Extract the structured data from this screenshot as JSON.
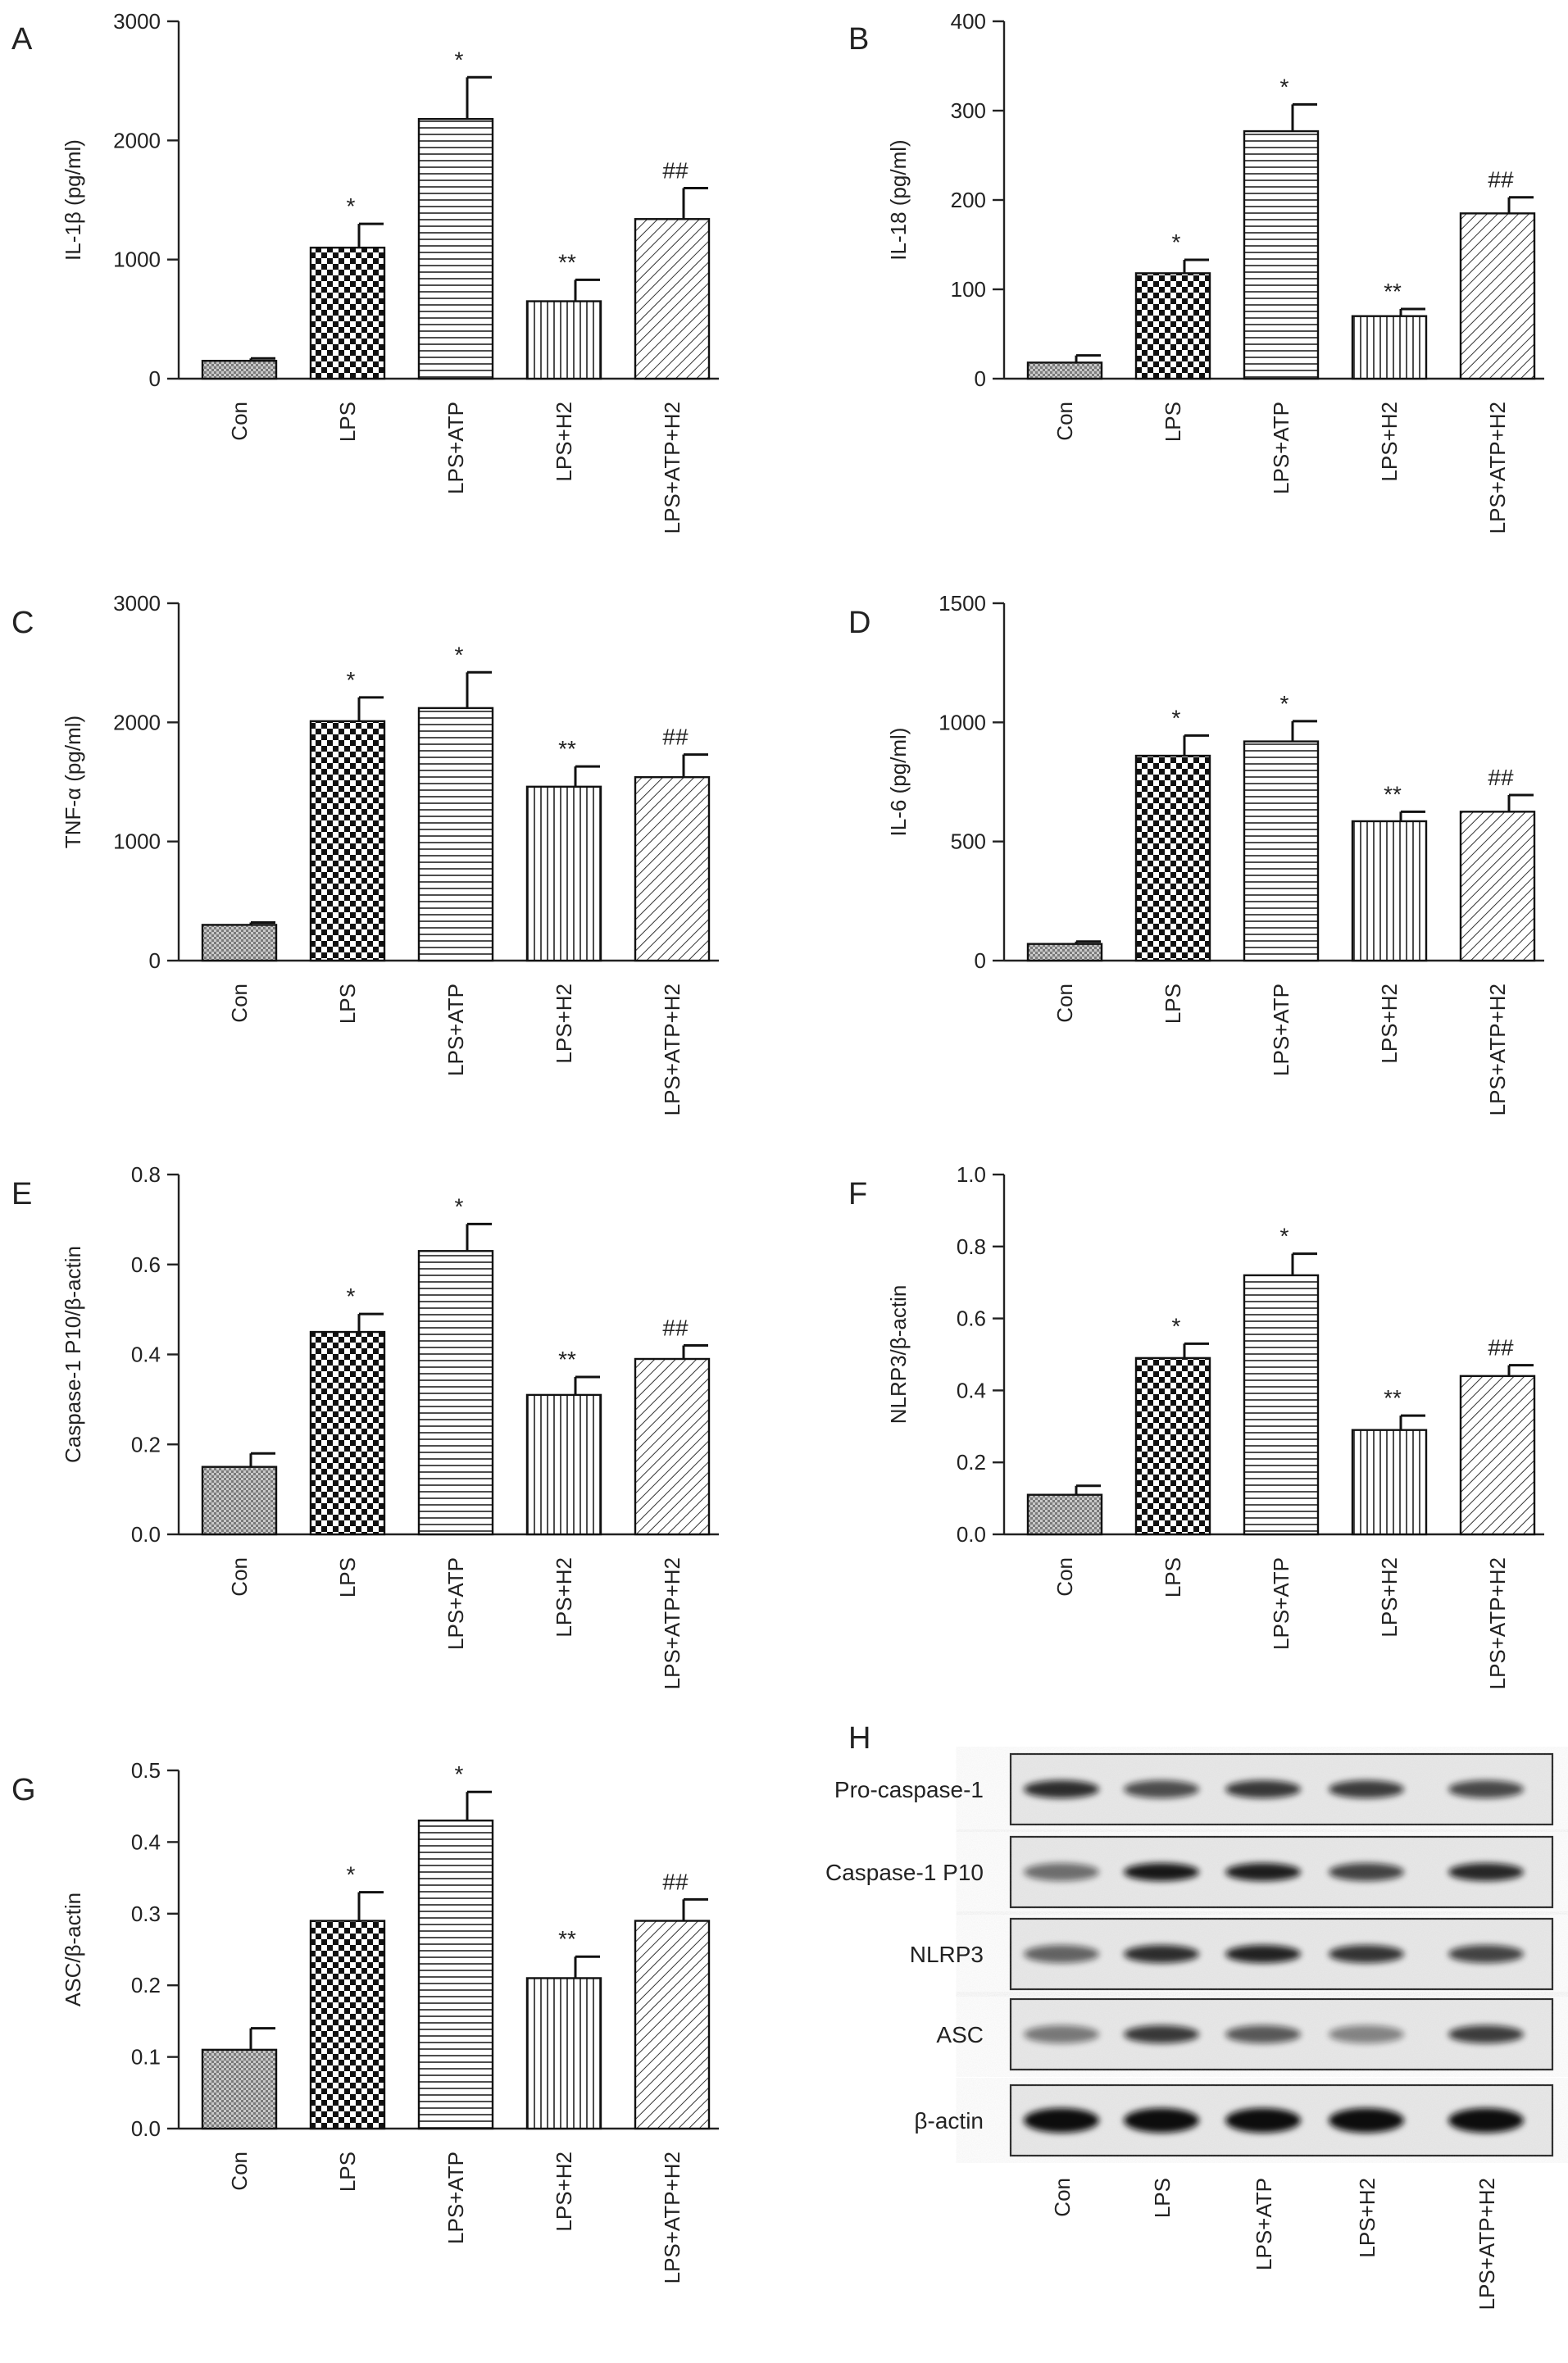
{
  "categories": [
    "Con",
    "LPS",
    "LPS+ATP",
    "LPS+H2",
    "LPS+ATP+H2"
  ],
  "chart_data": [
    {
      "panel": "A",
      "type": "bar",
      "ylabel": "IL-1β (pg/ml)",
      "ylim": [
        0,
        3000
      ],
      "yticks": [
        0,
        1000,
        2000,
        3000
      ],
      "tick_labels": [
        "0",
        "1000",
        "2000",
        "3000"
      ],
      "values": [
        150,
        1100,
        2180,
        650,
        1340
      ],
      "errors": [
        20,
        200,
        350,
        180,
        260
      ],
      "marks": [
        "",
        "*",
        "*",
        "**",
        "##"
      ]
    },
    {
      "panel": "B",
      "type": "bar",
      "ylabel": "IL-18 (pg/ml)",
      "ylim": [
        0,
        400
      ],
      "yticks": [
        0,
        100,
        200,
        300,
        400
      ],
      "tick_labels": [
        "0",
        "100",
        "200",
        "300",
        "400"
      ],
      "values": [
        18,
        118,
        277,
        70,
        185
      ],
      "errors": [
        8,
        15,
        30,
        8,
        18
      ],
      "marks": [
        "",
        "*",
        "*",
        "**",
        "##"
      ]
    },
    {
      "panel": "C",
      "type": "bar",
      "ylabel": "TNF-α (pg/ml)",
      "ylim": [
        0,
        3000
      ],
      "yticks": [
        0,
        1000,
        2000,
        3000
      ],
      "tick_labels": [
        "0",
        "1000",
        "2000",
        "3000"
      ],
      "values": [
        300,
        2010,
        2120,
        1460,
        1540
      ],
      "errors": [
        20,
        200,
        300,
        170,
        190
      ],
      "marks": [
        "",
        "*",
        "*",
        "**",
        "##"
      ]
    },
    {
      "panel": "D",
      "type": "bar",
      "ylabel": "IL-6 (pg/ml)",
      "ylim": [
        0,
        1500
      ],
      "yticks": [
        0,
        500,
        1000,
        1500
      ],
      "tick_labels": [
        "0",
        "500",
        "1000",
        "1500"
      ],
      "values": [
        70,
        860,
        920,
        585,
        625
      ],
      "errors": [
        10,
        85,
        85,
        40,
        70
      ],
      "marks": [
        "",
        "*",
        "*",
        "**",
        "##"
      ]
    },
    {
      "panel": "E",
      "type": "bar",
      "ylabel": "Caspase-1 P10/β-actin",
      "ylim": [
        0,
        0.8
      ],
      "yticks": [
        0,
        0.2,
        0.4,
        0.6,
        0.8
      ],
      "tick_labels": [
        "0.0",
        "0.2",
        "0.4",
        "0.6",
        "0.8"
      ],
      "values": [
        0.15,
        0.45,
        0.63,
        0.31,
        0.39
      ],
      "errors": [
        0.03,
        0.04,
        0.06,
        0.04,
        0.03
      ],
      "marks": [
        "",
        "*",
        "*",
        "**",
        "##"
      ]
    },
    {
      "panel": "F",
      "type": "bar",
      "ylabel": "NLRP3/β-actin",
      "ylim": [
        0,
        1.0
      ],
      "yticks": [
        0,
        0.2,
        0.4,
        0.6,
        0.8,
        1.0
      ],
      "tick_labels": [
        "0.0",
        "0.2",
        "0.4",
        "0.6",
        "0.8",
        "1.0"
      ],
      "values": [
        0.11,
        0.49,
        0.72,
        0.29,
        0.44
      ],
      "errors": [
        0.025,
        0.04,
        0.06,
        0.04,
        0.03
      ],
      "marks": [
        "",
        "*",
        "*",
        "**",
        "##"
      ]
    },
    {
      "panel": "G",
      "type": "bar",
      "ylabel": "ASC/β-actin",
      "ylim": [
        0,
        0.5
      ],
      "yticks": [
        0,
        0.1,
        0.2,
        0.3,
        0.4,
        0.5
      ],
      "tick_labels": [
        "0.0",
        "0.1",
        "0.2",
        "0.3",
        "0.4",
        "0.5"
      ],
      "values": [
        0.11,
        0.29,
        0.43,
        0.21,
        0.29
      ],
      "errors": [
        0.03,
        0.04,
        0.04,
        0.03,
        0.03
      ],
      "marks": [
        "",
        "*",
        "*",
        "**",
        "##"
      ]
    }
  ],
  "blot": {
    "panel": "H",
    "rows": [
      {
        "label": "Pro-caspase-1",
        "intensity": [
          0.85,
          0.7,
          0.8,
          0.78,
          0.72
        ]
      },
      {
        "label": "Caspase-1 P10",
        "intensity": [
          0.55,
          0.95,
          0.92,
          0.75,
          0.88
        ]
      },
      {
        "label": "NLRP3",
        "intensity": [
          0.6,
          0.85,
          0.9,
          0.82,
          0.75
        ]
      },
      {
        "label": "ASC",
        "intensity": [
          0.5,
          0.8,
          0.65,
          0.45,
          0.78
        ]
      },
      {
        "label": "β-actin",
        "intensity": [
          1.0,
          1.0,
          1.0,
          1.0,
          1.0
        ]
      }
    ]
  }
}
